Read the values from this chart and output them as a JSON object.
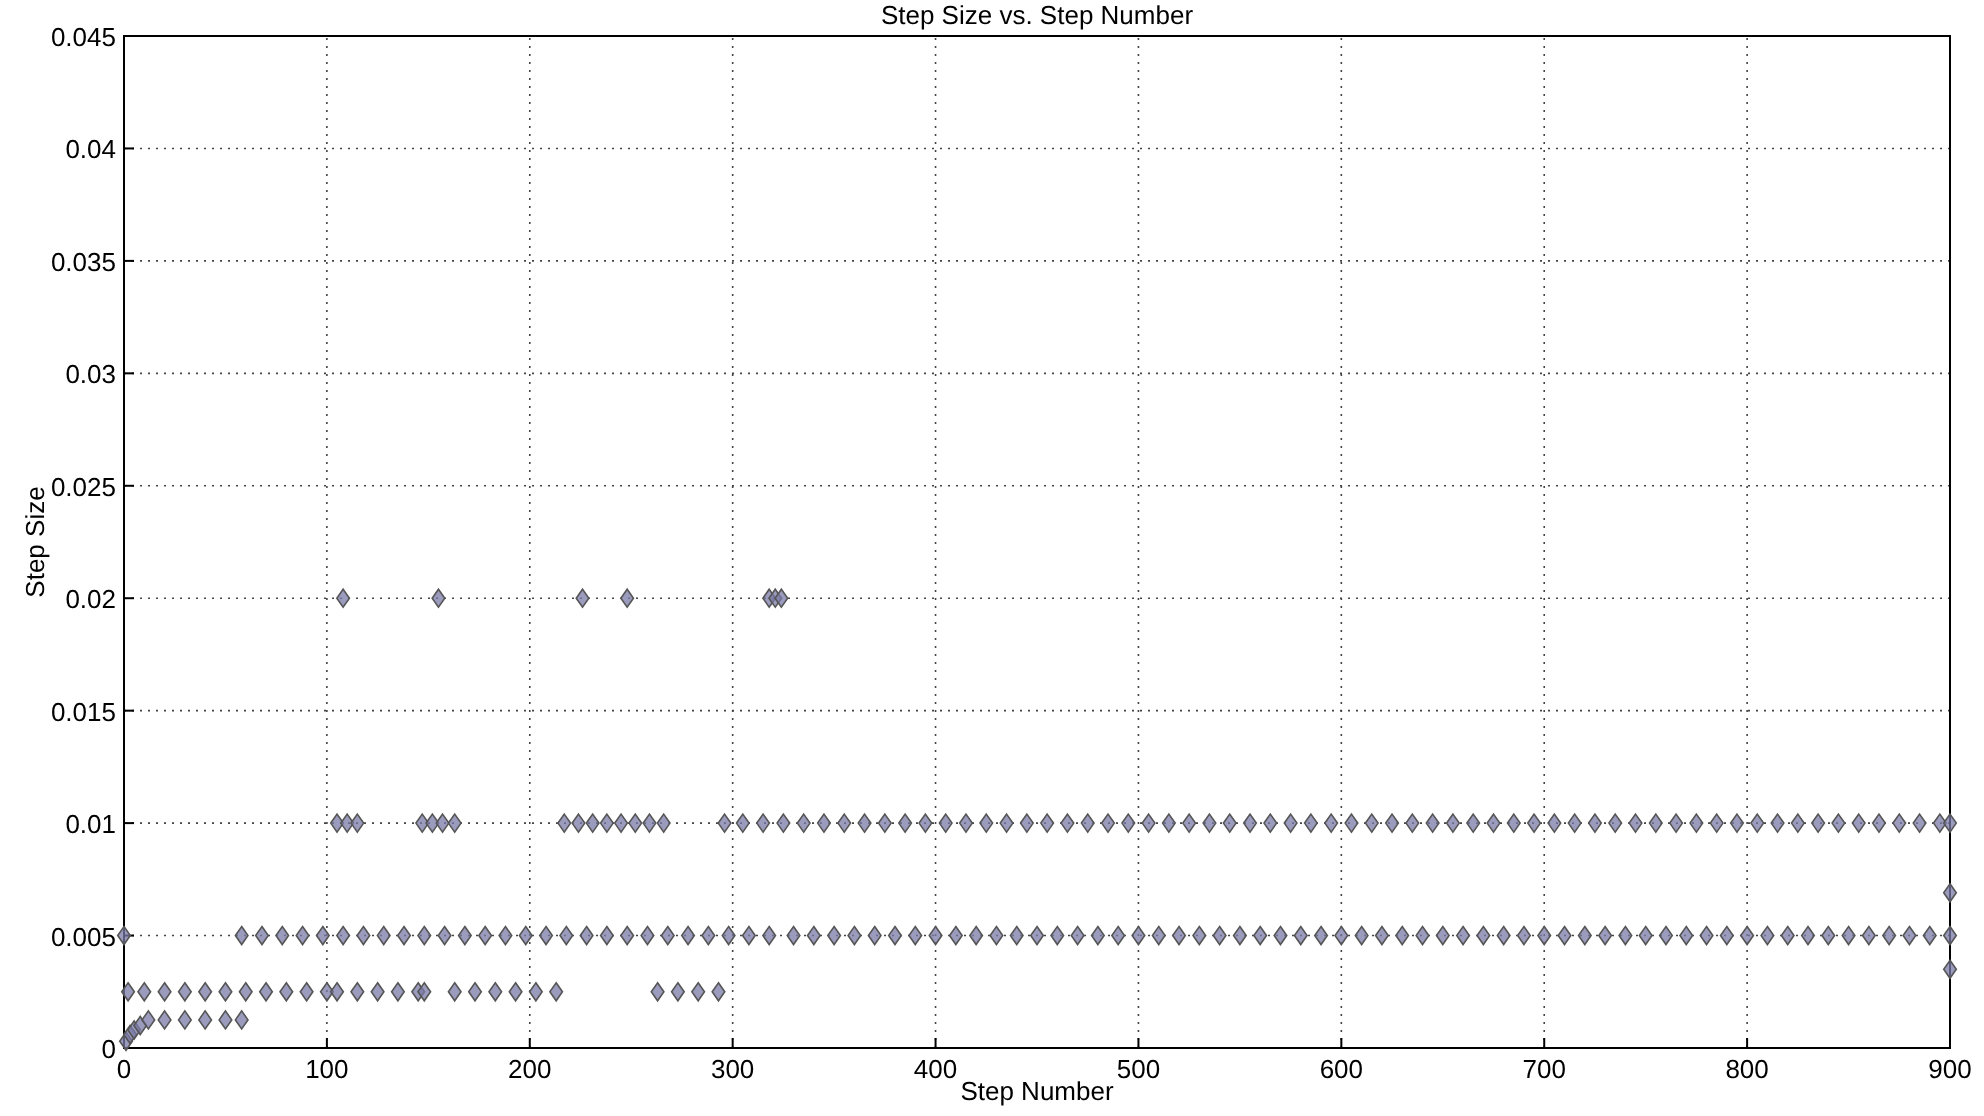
{
  "chart_data": {
    "type": "scatter",
    "title": "Step Size vs. Step Number",
    "xlabel": "Step Number",
    "ylabel": "Step Size",
    "xlim": [
      0,
      900
    ],
    "xticks": [
      0,
      100,
      200,
      300,
      400,
      500,
      600,
      700,
      800,
      900
    ],
    "ylim": [
      0,
      0.045
    ],
    "yticks": [
      0,
      0.005,
      0.01,
      0.015,
      0.02,
      0.025,
      0.03,
      0.035,
      0.04,
      0.045
    ],
    "grid": true,
    "marker": "diamond",
    "series": [
      {
        "color": "#7a7aa8",
        "x": [
          105,
          110,
          115,
          147,
          152,
          157,
          163,
          217,
          224,
          231,
          238,
          245,
          252,
          259,
          266,
          296,
          305,
          315,
          325,
          335,
          345,
          355,
          365,
          375,
          385,
          395,
          405,
          415,
          425,
          435,
          445,
          455,
          465,
          475,
          485,
          495,
          505,
          515,
          525,
          535,
          545,
          555,
          565,
          575,
          585,
          595,
          605,
          615,
          625,
          635,
          645,
          655,
          665,
          675,
          685,
          695,
          705,
          715,
          725,
          735,
          745,
          755,
          765,
          775,
          785,
          795,
          805,
          815,
          825,
          835,
          845,
          855,
          865,
          875,
          885,
          895,
          900
        ],
        "values": [
          0.01,
          0.01,
          0.01,
          0.01,
          0.01,
          0.01,
          0.01,
          0.01,
          0.01,
          0.01,
          0.01,
          0.01,
          0.01,
          0.01,
          0.01,
          0.01,
          0.01,
          0.01,
          0.01,
          0.01,
          0.01,
          0.01,
          0.01,
          0.01,
          0.01,
          0.01,
          0.01,
          0.01,
          0.01,
          0.01,
          0.01,
          0.01,
          0.01,
          0.01,
          0.01,
          0.01,
          0.01,
          0.01,
          0.01,
          0.01,
          0.01,
          0.01,
          0.01,
          0.01,
          0.01,
          0.01,
          0.01,
          0.01,
          0.01,
          0.01,
          0.01,
          0.01,
          0.01,
          0.01,
          0.01,
          0.01,
          0.01,
          0.01,
          0.01,
          0.01,
          0.01,
          0.01,
          0.01,
          0.01,
          0.01,
          0.01,
          0.01,
          0.01,
          0.01,
          0.01,
          0.01,
          0.01,
          0.01,
          0.01,
          0.01,
          0.01,
          0.01
        ]
      },
      {
        "color": "#7a7aa8",
        "x": [
          0,
          58,
          68,
          78,
          88,
          98,
          108,
          118,
          128,
          138,
          148,
          158,
          168,
          178,
          188,
          198,
          208,
          218,
          228,
          238,
          248,
          258,
          268,
          278,
          288,
          298,
          308,
          318,
          330,
          340,
          350,
          360,
          370,
          380,
          390,
          400,
          410,
          420,
          430,
          440,
          450,
          460,
          470,
          480,
          490,
          500,
          510,
          520,
          530,
          540,
          550,
          560,
          570,
          580,
          590,
          600,
          610,
          620,
          630,
          640,
          650,
          660,
          670,
          680,
          690,
          700,
          710,
          720,
          730,
          740,
          750,
          760,
          770,
          780,
          790,
          800,
          810,
          820,
          830,
          840,
          850,
          860,
          870,
          880,
          890,
          900
        ],
        "values": [
          0.005,
          0.005,
          0.005,
          0.005,
          0.005,
          0.005,
          0.005,
          0.005,
          0.005,
          0.005,
          0.005,
          0.005,
          0.005,
          0.005,
          0.005,
          0.005,
          0.005,
          0.005,
          0.005,
          0.005,
          0.005,
          0.005,
          0.005,
          0.005,
          0.005,
          0.005,
          0.005,
          0.005,
          0.005,
          0.005,
          0.005,
          0.005,
          0.005,
          0.005,
          0.005,
          0.005,
          0.005,
          0.005,
          0.005,
          0.005,
          0.005,
          0.005,
          0.005,
          0.005,
          0.005,
          0.005,
          0.005,
          0.005,
          0.005,
          0.005,
          0.005,
          0.005,
          0.005,
          0.005,
          0.005,
          0.005,
          0.005,
          0.005,
          0.005,
          0.005,
          0.005,
          0.005,
          0.005,
          0.005,
          0.005,
          0.005,
          0.005,
          0.005,
          0.005,
          0.005,
          0.005,
          0.005,
          0.005,
          0.005,
          0.005,
          0.005,
          0.005,
          0.005,
          0.005,
          0.005,
          0.005,
          0.005,
          0.005,
          0.005,
          0.005,
          0.005
        ]
      },
      {
        "color": "#7a7aa8",
        "x": [
          2,
          10,
          20,
          30,
          40,
          50,
          60,
          70,
          80,
          90,
          100,
          105,
          115,
          125,
          135,
          145,
          148,
          163,
          173,
          183,
          193,
          203,
          213,
          263,
          273,
          283,
          293
        ],
        "values": [
          0.0025,
          0.0025,
          0.0025,
          0.0025,
          0.0025,
          0.0025,
          0.0025,
          0.0025,
          0.0025,
          0.0025,
          0.0025,
          0.0025,
          0.0025,
          0.0025,
          0.0025,
          0.0025,
          0.0025,
          0.0025,
          0.0025,
          0.0025,
          0.0025,
          0.0025,
          0.0025,
          0.0025,
          0.0025,
          0.0025,
          0.0025
        ]
      },
      {
        "color": "#7a7aa8",
        "x": [
          1,
          3,
          5,
          8,
          12,
          20,
          30,
          40,
          50,
          58
        ],
        "values": [
          0.0003,
          0.0006,
          0.0008,
          0.001,
          0.00125,
          0.00125,
          0.00125,
          0.00125,
          0.00125,
          0.00125
        ]
      },
      {
        "color": "#7a7aa8",
        "x": [
          108,
          155,
          226,
          248,
          318,
          321,
          324,
          900,
          900
        ],
        "values": [
          0.02,
          0.02,
          0.02,
          0.02,
          0.02,
          0.02,
          0.02,
          0.0069,
          0.0035
        ]
      }
    ]
  }
}
